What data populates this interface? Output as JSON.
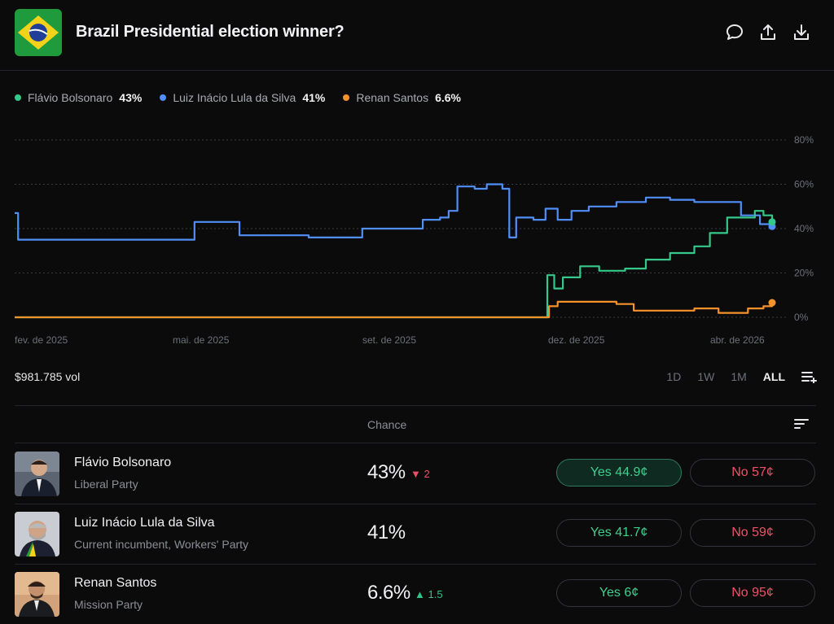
{
  "header": {
    "title": "Brazil Presidential election winner?",
    "icons": [
      "comment-icon",
      "share-icon",
      "download-icon"
    ]
  },
  "legend": [
    {
      "name": "Flávio Bolsonaro",
      "pct": "43%",
      "color": "#34c98b"
    },
    {
      "name": "Luiz Inácio Lula da Silva",
      "pct": "41%",
      "color": "#4f8ff7"
    },
    {
      "name": "Renan Santos",
      "pct": "6.6%",
      "color": "#f5922a"
    }
  ],
  "chart_data": {
    "type": "line",
    "x_labels": [
      "fev. de 2025",
      "mai. de 2025",
      "set. de 2025",
      "dez. de 2025",
      "abr. de 2026"
    ],
    "y_ticks": [
      "80%",
      "60%",
      "40%",
      "20%",
      "0%"
    ],
    "ylim": [
      0,
      80
    ],
    "grid": true,
    "series": [
      {
        "name": "Luiz Inácio Lula da Silva",
        "color": "#4f8ff7",
        "points": [
          [
            "2025-02-01",
            47
          ],
          [
            "2025-02-03",
            35
          ],
          [
            "2025-05-15",
            35
          ],
          [
            "2025-05-16",
            43
          ],
          [
            "2025-06-10",
            43
          ],
          [
            "2025-06-11",
            37
          ],
          [
            "2025-07-20",
            37
          ],
          [
            "2025-07-21",
            36
          ],
          [
            "2025-08-20",
            36
          ],
          [
            "2025-08-21",
            40
          ],
          [
            "2025-09-20",
            40
          ],
          [
            "2025-09-25",
            44
          ],
          [
            "2025-10-05",
            45
          ],
          [
            "2025-10-10",
            48
          ],
          [
            "2025-10-15",
            59
          ],
          [
            "2025-10-25",
            58
          ],
          [
            "2025-11-01",
            60
          ],
          [
            "2025-11-10",
            58
          ],
          [
            "2025-11-14",
            36
          ],
          [
            "2025-11-18",
            45
          ],
          [
            "2025-11-28",
            44
          ],
          [
            "2025-12-05",
            49
          ],
          [
            "2025-12-12",
            44
          ],
          [
            "2025-12-20",
            48
          ],
          [
            "2025-12-30",
            50
          ],
          [
            "2026-01-15",
            52
          ],
          [
            "2026-02-01",
            54
          ],
          [
            "2026-02-15",
            53
          ],
          [
            "2026-03-01",
            52
          ],
          [
            "2026-03-15",
            52
          ],
          [
            "2026-03-28",
            46
          ],
          [
            "2026-04-08",
            42
          ],
          [
            "2026-04-15",
            41
          ]
        ]
      },
      {
        "name": "Flávio Bolsonaro",
        "color": "#34c98b",
        "points": [
          [
            "2025-02-01",
            0
          ],
          [
            "2025-12-05",
            0
          ],
          [
            "2025-12-06",
            19
          ],
          [
            "2025-12-10",
            13
          ],
          [
            "2025-12-15",
            18
          ],
          [
            "2025-12-25",
            23
          ],
          [
            "2026-01-05",
            21
          ],
          [
            "2026-01-20",
            22
          ],
          [
            "2026-02-01",
            26
          ],
          [
            "2026-02-15",
            29
          ],
          [
            "2026-03-01",
            32
          ],
          [
            "2026-03-10",
            38
          ],
          [
            "2026-03-20",
            45
          ],
          [
            "2026-04-05",
            48
          ],
          [
            "2026-04-10",
            46
          ],
          [
            "2026-04-15",
            43
          ]
        ]
      },
      {
        "name": "Renan Santos",
        "color": "#f5922a",
        "points": [
          [
            "2025-02-01",
            0
          ],
          [
            "2025-12-06",
            0
          ],
          [
            "2025-12-07",
            5
          ],
          [
            "2025-12-12",
            7
          ],
          [
            "2026-01-10",
            7
          ],
          [
            "2026-01-15",
            6
          ],
          [
            "2026-01-25",
            3
          ],
          [
            "2026-02-15",
            3
          ],
          [
            "2026-03-01",
            4
          ],
          [
            "2026-03-15",
            2
          ],
          [
            "2026-04-01",
            4
          ],
          [
            "2026-04-10",
            5
          ],
          [
            "2026-04-15",
            6.6
          ]
        ]
      }
    ]
  },
  "volume": "$981.785 vol",
  "ranges": [
    "1D",
    "1W",
    "1M",
    "ALL"
  ],
  "active_range": "ALL",
  "table_header": {
    "chance": "Chance"
  },
  "outcomes": [
    {
      "name": "Flávio Bolsonaro",
      "party": "Liberal Party",
      "chance": "43%",
      "delta": "2",
      "delta_dir": "down",
      "yes": "Yes 44.9¢",
      "no": "No 57¢"
    },
    {
      "name": "Luiz Inácio Lula da Silva",
      "party": "Current incumbent, Workers' Party",
      "chance": "41%",
      "delta": "",
      "delta_dir": "none",
      "yes": "Yes 41.7¢",
      "no": "No 59¢"
    },
    {
      "name": "Renan Santos",
      "party": "Mission Party",
      "chance": "6.6%",
      "delta": "1.5",
      "delta_dir": "up",
      "yes": "Yes 6¢",
      "no": "No 95¢"
    }
  ]
}
